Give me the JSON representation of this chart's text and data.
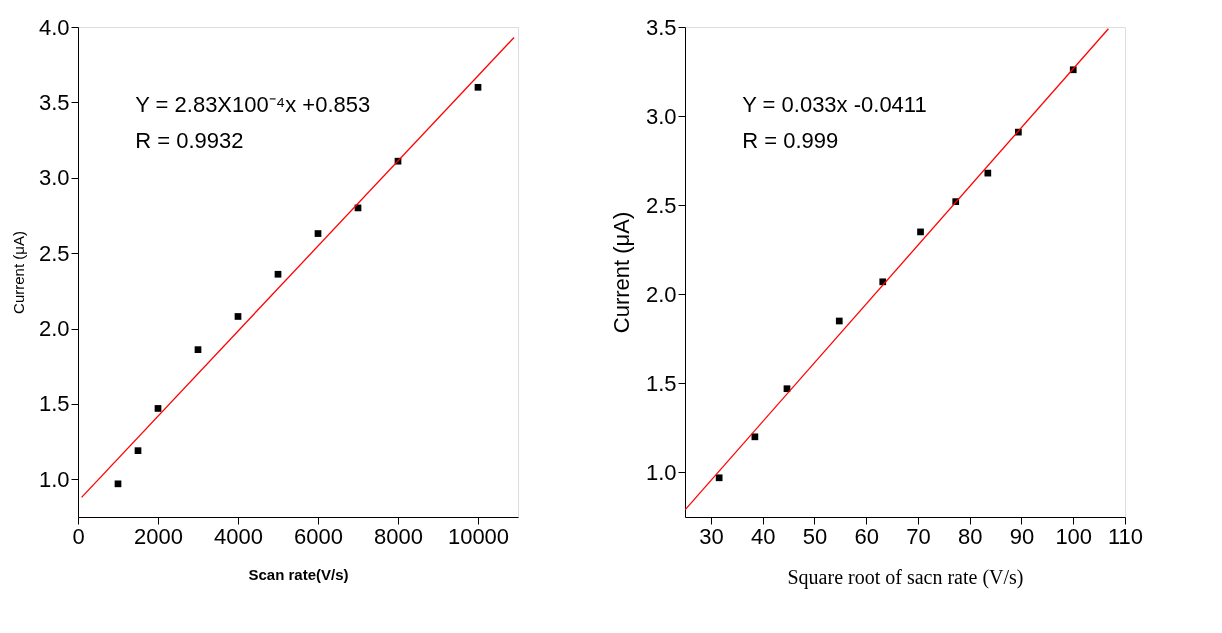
{
  "chart_data": [
    {
      "type": "scatter",
      "xlabel": "Scan rate(V/s)",
      "ylabel": "Current (μA)",
      "xlim": [
        0,
        11000
      ],
      "ylim": [
        0.75,
        4.0
      ],
      "xticks": [
        0,
        2000,
        4000,
        6000,
        8000,
        10000
      ],
      "yticks": [
        {
          "value": 1.0,
          "label": "1.0"
        },
        1.5,
        {
          "value": 2.0,
          "label": "2.0"
        },
        2.5,
        {
          "value": 3.0,
          "label": "3.0"
        },
        3.5,
        {
          "value": 4.0,
          "label": "4.0"
        }
      ],
      "grid": false,
      "annotations": [
        "Y = 2.83X100⁻⁴x +0.853",
        "R = 0.9932"
      ],
      "series": [
        {
          "color": "#000000",
          "marker": "square",
          "x": [
            1000,
            1500,
            2000,
            3000,
            4000,
            5000,
            6000,
            7000,
            8000,
            10000
          ],
          "values": [
            0.97,
            1.19,
            1.47,
            1.86,
            2.08,
            2.36,
            2.63,
            2.8,
            3.11,
            3.6
          ]
        },
        {
          "type": "line",
          "color": "#ff0000",
          "marker": "none",
          "x": [
            90,
            10900
          ],
          "values": [
            0.88,
            3.93
          ]
        }
      ]
    },
    {
      "type": "scatter",
      "xlabel": "Square root of sacn rate (V/s)",
      "ylabel": "Current (μA)",
      "xlim": [
        25,
        110
      ],
      "ylim": [
        0.75,
        3.5
      ],
      "xticks": [
        30,
        40,
        50,
        60,
        70,
        80,
        90,
        100,
        110
      ],
      "yticks": [
        {
          "value": 1.0,
          "label": "1.0"
        },
        1.5,
        {
          "value": 2.0,
          "label": "2.0"
        },
        2.5,
        {
          "value": 3.0,
          "label": "3.0"
        },
        3.5
      ],
      "grid": false,
      "annotations": [
        "Y =  0.033x -0.0411",
        "R =  0.999"
      ],
      "series": [
        {
          "color": "#000000",
          "marker": "square",
          "x": [
            31.6,
            38.5,
            44.7,
            54.8,
            63.2,
            70.5,
            77.3,
            83.5,
            89.4,
            100
          ],
          "values": [
            0.97,
            1.2,
            1.47,
            1.85,
            2.07,
            2.35,
            2.52,
            2.68,
            2.91,
            3.26
          ]
        },
        {
          "type": "line",
          "color": "#ff0000",
          "marker": "none",
          "x": [
            25,
            106.8
          ],
          "values": [
            0.79,
            3.49
          ]
        }
      ]
    }
  ]
}
